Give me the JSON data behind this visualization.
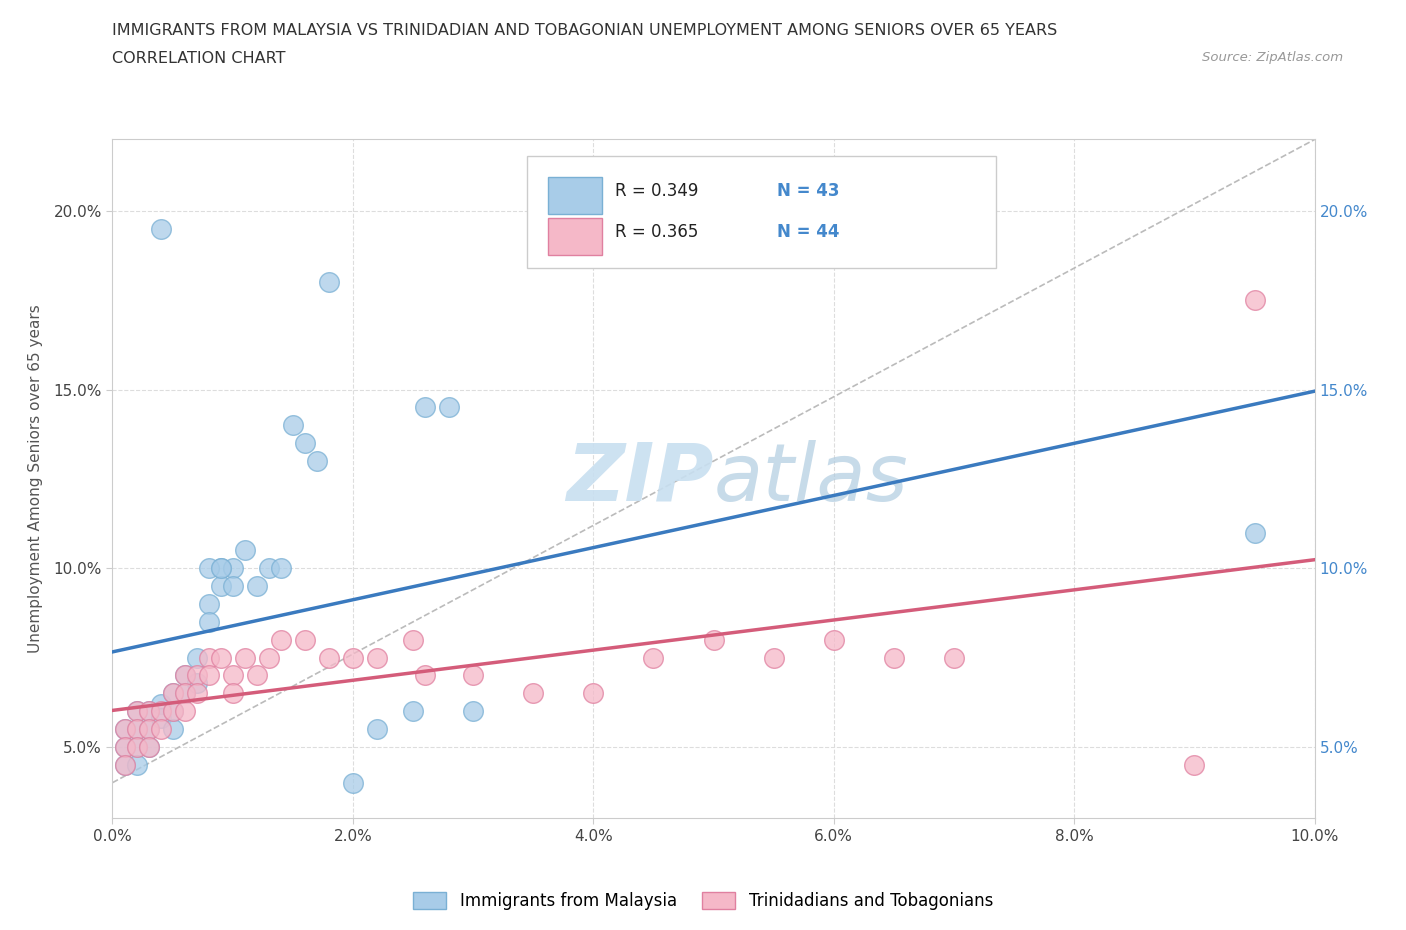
{
  "title_line1": "IMMIGRANTS FROM MALAYSIA VS TRINIDADIAN AND TOBAGONIAN UNEMPLOYMENT AMONG SENIORS OVER 65 YEARS",
  "title_line2": "CORRELATION CHART",
  "source_text": "Source: ZipAtlas.com",
  "ylabel": "Unemployment Among Seniors over 65 years",
  "xlim": [
    0.0,
    0.1
  ],
  "ylim": [
    0.03,
    0.22
  ],
  "yticks": [
    0.05,
    0.1,
    0.15,
    0.2
  ],
  "xticks": [
    0.0,
    0.02,
    0.04,
    0.06,
    0.08,
    0.1
  ],
  "malaysia_color": "#a8cce8",
  "malaysia_edge_color": "#7ab0d4",
  "trinidadian_color": "#f5b8c8",
  "trinidadian_edge_color": "#e080a0",
  "malaysia_R": 0.349,
  "malaysia_N": 43,
  "trinidadian_R": 0.365,
  "trinidadian_N": 44,
  "regression_color_malaysia": "#3a7abf",
  "regression_color_trinidadian": "#d45c7a",
  "diagonal_color": "#bbbbbb",
  "legend_label_malaysia": "Immigrants from Malaysia",
  "legend_label_trinidadian": "Trinidadians and Tobagonians",
  "watermark_color": "#c8dff0",
  "malaysia_x": [
    0.001,
    0.001,
    0.001,
    0.002,
    0.002,
    0.002,
    0.002,
    0.003,
    0.003,
    0.003,
    0.004,
    0.004,
    0.005,
    0.005,
    0.005,
    0.006,
    0.006,
    0.007,
    0.007,
    0.008,
    0.008,
    0.009,
    0.009,
    0.01,
    0.01,
    0.011,
    0.012,
    0.013,
    0.014,
    0.015,
    0.016,
    0.017,
    0.018,
    0.02,
    0.022,
    0.025,
    0.026,
    0.028,
    0.03,
    0.008,
    0.009,
    0.095,
    0.004
  ],
  "malaysia_y": [
    0.055,
    0.05,
    0.045,
    0.06,
    0.055,
    0.05,
    0.045,
    0.06,
    0.055,
    0.05,
    0.062,
    0.058,
    0.065,
    0.06,
    0.055,
    0.07,
    0.065,
    0.075,
    0.068,
    0.09,
    0.085,
    0.1,
    0.095,
    0.1,
    0.095,
    0.105,
    0.095,
    0.1,
    0.1,
    0.14,
    0.135,
    0.13,
    0.18,
    0.04,
    0.055,
    0.06,
    0.145,
    0.145,
    0.06,
    0.1,
    0.1,
    0.11,
    0.195
  ],
  "trinidadian_x": [
    0.001,
    0.001,
    0.001,
    0.002,
    0.002,
    0.002,
    0.003,
    0.003,
    0.003,
    0.004,
    0.004,
    0.005,
    0.005,
    0.006,
    0.006,
    0.006,
    0.007,
    0.007,
    0.008,
    0.008,
    0.009,
    0.01,
    0.01,
    0.011,
    0.012,
    0.013,
    0.014,
    0.016,
    0.018,
    0.02,
    0.022,
    0.025,
    0.026,
    0.03,
    0.035,
    0.04,
    0.045,
    0.05,
    0.055,
    0.06,
    0.065,
    0.07,
    0.09,
    0.095
  ],
  "trinidadian_y": [
    0.055,
    0.05,
    0.045,
    0.06,
    0.055,
    0.05,
    0.06,
    0.055,
    0.05,
    0.06,
    0.055,
    0.065,
    0.06,
    0.07,
    0.065,
    0.06,
    0.07,
    0.065,
    0.075,
    0.07,
    0.075,
    0.07,
    0.065,
    0.075,
    0.07,
    0.075,
    0.08,
    0.08,
    0.075,
    0.075,
    0.075,
    0.08,
    0.07,
    0.07,
    0.065,
    0.065,
    0.075,
    0.08,
    0.075,
    0.08,
    0.075,
    0.075,
    0.045,
    0.175
  ]
}
